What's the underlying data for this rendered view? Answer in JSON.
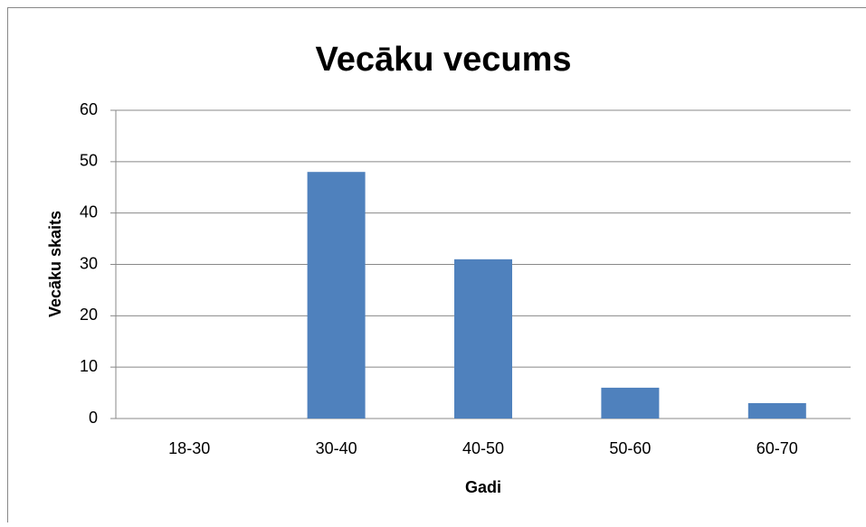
{
  "chart_data": {
    "type": "bar",
    "title": "Vecāku vecums",
    "x_label": "Gadi",
    "y_label": "Vecāku skaits",
    "categories": [
      "18-30",
      "30-40",
      "40-50",
      "50-60",
      "60-70"
    ],
    "values": [
      0,
      48,
      31,
      6,
      3
    ],
    "color": "#4f81bd",
    "ylim": [
      0,
      60
    ],
    "yticks": [
      0,
      10,
      20,
      30,
      40,
      50,
      60
    ],
    "grid": true
  }
}
